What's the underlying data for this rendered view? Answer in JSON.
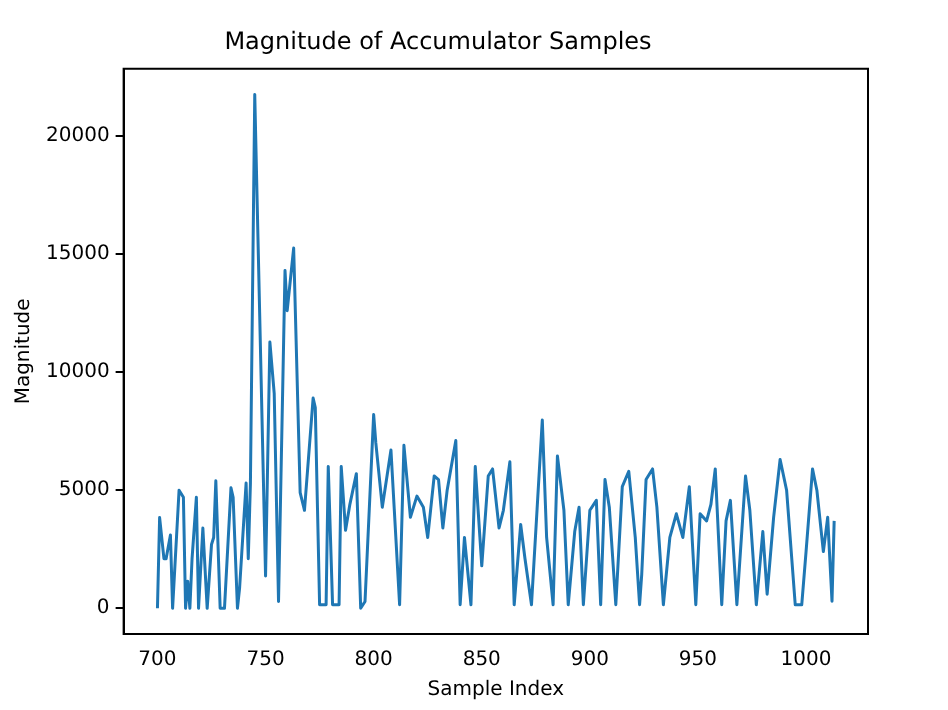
{
  "chart_data": {
    "type": "line",
    "title": "Magnitude of Accumulator Samples",
    "xlabel": "Sample Index",
    "ylabel": "Magnitude",
    "x": [
      700,
      701,
      703,
      704,
      706,
      707,
      710,
      712,
      713,
      714,
      715,
      716,
      718,
      719,
      721,
      723,
      725,
      726,
      727,
      729,
      731,
      734,
      735,
      737,
      738,
      741,
      742,
      743,
      745,
      750,
      752,
      754,
      756,
      759,
      760,
      763,
      766,
      768,
      772,
      773,
      775,
      778,
      779,
      781,
      784,
      785,
      787,
      789,
      792,
      794,
      796,
      800,
      801,
      804,
      808,
      812,
      814,
      817,
      820,
      823,
      825,
      828,
      830,
      832,
      834,
      838,
      840,
      842,
      845,
      847,
      850,
      853,
      855,
      858,
      860,
      863,
      865,
      868,
      870,
      873,
      878,
      880,
      883,
      885,
      888,
      890,
      893,
      895,
      897,
      900,
      903,
      905,
      907,
      909,
      912,
      915,
      918,
      921,
      923,
      924,
      926,
      929,
      931,
      934,
      937,
      940,
      943,
      946,
      949,
      951,
      954,
      956,
      958,
      961,
      963,
      965,
      968,
      972,
      974,
      977,
      980,
      982,
      985,
      988,
      991,
      995,
      998,
      1000,
      1003,
      1005,
      1008,
      1010,
      1012,
      1013
    ],
    "values": [
      0,
      3840,
      2100,
      2100,
      3100,
      0,
      5000,
      4700,
      0,
      1150,
      0,
      2100,
      4700,
      0,
      3400,
      0,
      2700,
      3000,
      5400,
      0,
      0,
      5100,
      4700,
      0,
      870,
      5300,
      2100,
      5300,
      21750,
      1370,
      11270,
      9100,
      290,
      14300,
      12600,
      15250,
      4900,
      4150,
      8900,
      8500,
      150,
      150,
      6000,
      150,
      150,
      6000,
      3300,
      4400,
      5700,
      0,
      290,
      8200,
      7000,
      4280,
      6700,
      150,
      6900,
      3850,
      4750,
      4280,
      3000,
      5600,
      5450,
      3400,
      5000,
      7100,
      150,
      3000,
      150,
      6000,
      1800,
      5600,
      5900,
      3400,
      4150,
      6200,
      150,
      3550,
      2100,
      150,
      7970,
      3000,
      150,
      6450,
      4150,
      150,
      3250,
      4280,
      150,
      4150,
      4570,
      150,
      5450,
      4280,
      150,
      5150,
      5800,
      3000,
      150,
      1450,
      5450,
      5900,
      4280,
      150,
      3000,
      4000,
      3000,
      5150,
      150,
      4000,
      3700,
      4400,
      5900,
      150,
      3700,
      4570,
      150,
      5600,
      4150,
      150,
      3250,
      600,
      3850,
      6300,
      5000,
      150,
      150,
      2400,
      5900,
      5000,
      2400,
      3850,
      300,
      3700
    ],
    "color": "#1f77b4",
    "xlim": [
      684.35,
      1028.65
    ],
    "xticks": [
      700,
      750,
      800,
      850,
      900,
      950,
      1000
    ],
    "ylim": [
      -1087.5,
      22837.5
    ],
    "yticks": [
      0,
      5000,
      10000,
      15000,
      20000
    ]
  }
}
